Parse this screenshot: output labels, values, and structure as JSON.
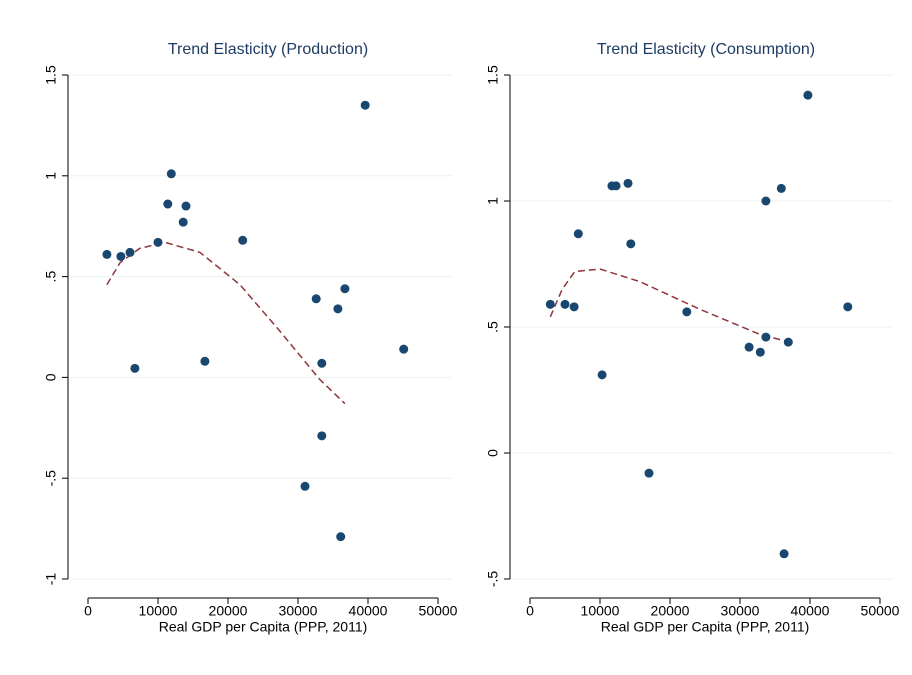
{
  "chart_data": [
    {
      "type": "scatter",
      "title": "Trend Elasticity (Production)",
      "x_label": "Real GDP per Capita (PPP, 2011)",
      "xlim": [
        0,
        50000
      ],
      "xticks": [
        0,
        10000,
        20000,
        30000,
        40000,
        50000
      ],
      "ylim": [
        -1,
        1.5
      ],
      "yticks": [
        -1,
        {
          "value": -0.5,
          "label": "-.5"
        },
        0,
        {
          "value": 0.5,
          "label": ".5"
        },
        1,
        1.5
      ],
      "grid": true,
      "points": {
        "color": "#1a476f",
        "x": [
          2700,
          4700,
          6000,
          6700,
          10000,
          11400,
          11900,
          13600,
          14000,
          16700,
          22100,
          31000,
          32600,
          33400,
          33400,
          35700,
          36100,
          36700,
          39600,
          45100
        ],
        "y": [
          0.61,
          0.6,
          0.62,
          0.045,
          0.67,
          0.86,
          1.01,
          0.77,
          0.85,
          0.08,
          0.68,
          -0.54,
          0.39,
          0.07,
          -0.29,
          0.34,
          -0.79,
          0.44,
          1.35,
          0.14
        ]
      },
      "fit": {
        "color": "#90353b",
        "dashed": true,
        "x": [
          2700,
          4600,
          7400,
          11000,
          16000,
          21700,
          27400,
          33100,
          36700
        ],
        "y": [
          0.46,
          0.57,
          0.64,
          0.67,
          0.62,
          0.46,
          0.23,
          -0.01,
          -0.13
        ]
      }
    },
    {
      "type": "scatter",
      "title": "Trend Elasticity (Consumption)",
      "x_label": "Real GDP per Capita (PPP, 2011)",
      "xlim": [
        0,
        50000
      ],
      "xticks": [
        0,
        10000,
        20000,
        30000,
        40000,
        50000
      ],
      "ylim": [
        -0.5,
        1.5
      ],
      "yticks": [
        {
          "value": -0.5,
          "label": "-.5"
        },
        0,
        {
          "value": 0.5,
          "label": ".5"
        },
        1,
        1.5
      ],
      "grid": true,
      "points": {
        "color": "#1a476f",
        "x": [
          2900,
          5000,
          6300,
          6900,
          10300,
          11700,
          12300,
          14000,
          14400,
          17000,
          22400,
          31300,
          32900,
          33700,
          33700,
          35900,
          36300,
          36900,
          39700,
          45400
        ],
        "y": [
          0.59,
          0.59,
          0.58,
          0.87,
          0.31,
          1.06,
          1.06,
          1.07,
          0.83,
          -0.08,
          0.56,
          0.42,
          0.4,
          0.46,
          1.0,
          1.05,
          -0.4,
          0.44,
          1.42,
          0.58
        ]
      },
      "fit": {
        "color": "#90353b",
        "dashed": true,
        "x": [
          2900,
          4600,
          6400,
          10000,
          15700,
          24300,
          32900,
          37100
        ],
        "y": [
          0.54,
          0.65,
          0.72,
          0.73,
          0.68,
          0.57,
          0.47,
          0.44
        ]
      }
    }
  ]
}
